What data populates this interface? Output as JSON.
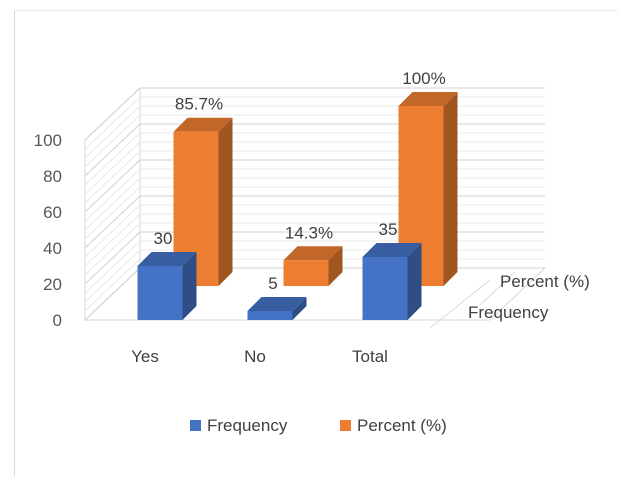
{
  "chart_data": {
    "type": "bar",
    "categories": [
      "Yes",
      "No",
      "Total"
    ],
    "series": [
      {
        "name": "Frequency",
        "values": [
          30,
          5,
          35
        ],
        "labels": [
          "30",
          "5",
          "35"
        ],
        "color": "#4472c4"
      },
      {
        "name": "Percent (%)",
        "values": [
          85.7,
          14.3,
          100
        ],
        "labels": [
          "85.7%",
          "14.3%",
          "100%"
        ],
        "color": "#ed7d31"
      }
    ],
    "yticks": [
      "0",
      "20",
      "40",
      "60",
      "80",
      "100"
    ],
    "ylim": [
      0,
      100
    ],
    "grid": true,
    "legend": "bottom"
  }
}
